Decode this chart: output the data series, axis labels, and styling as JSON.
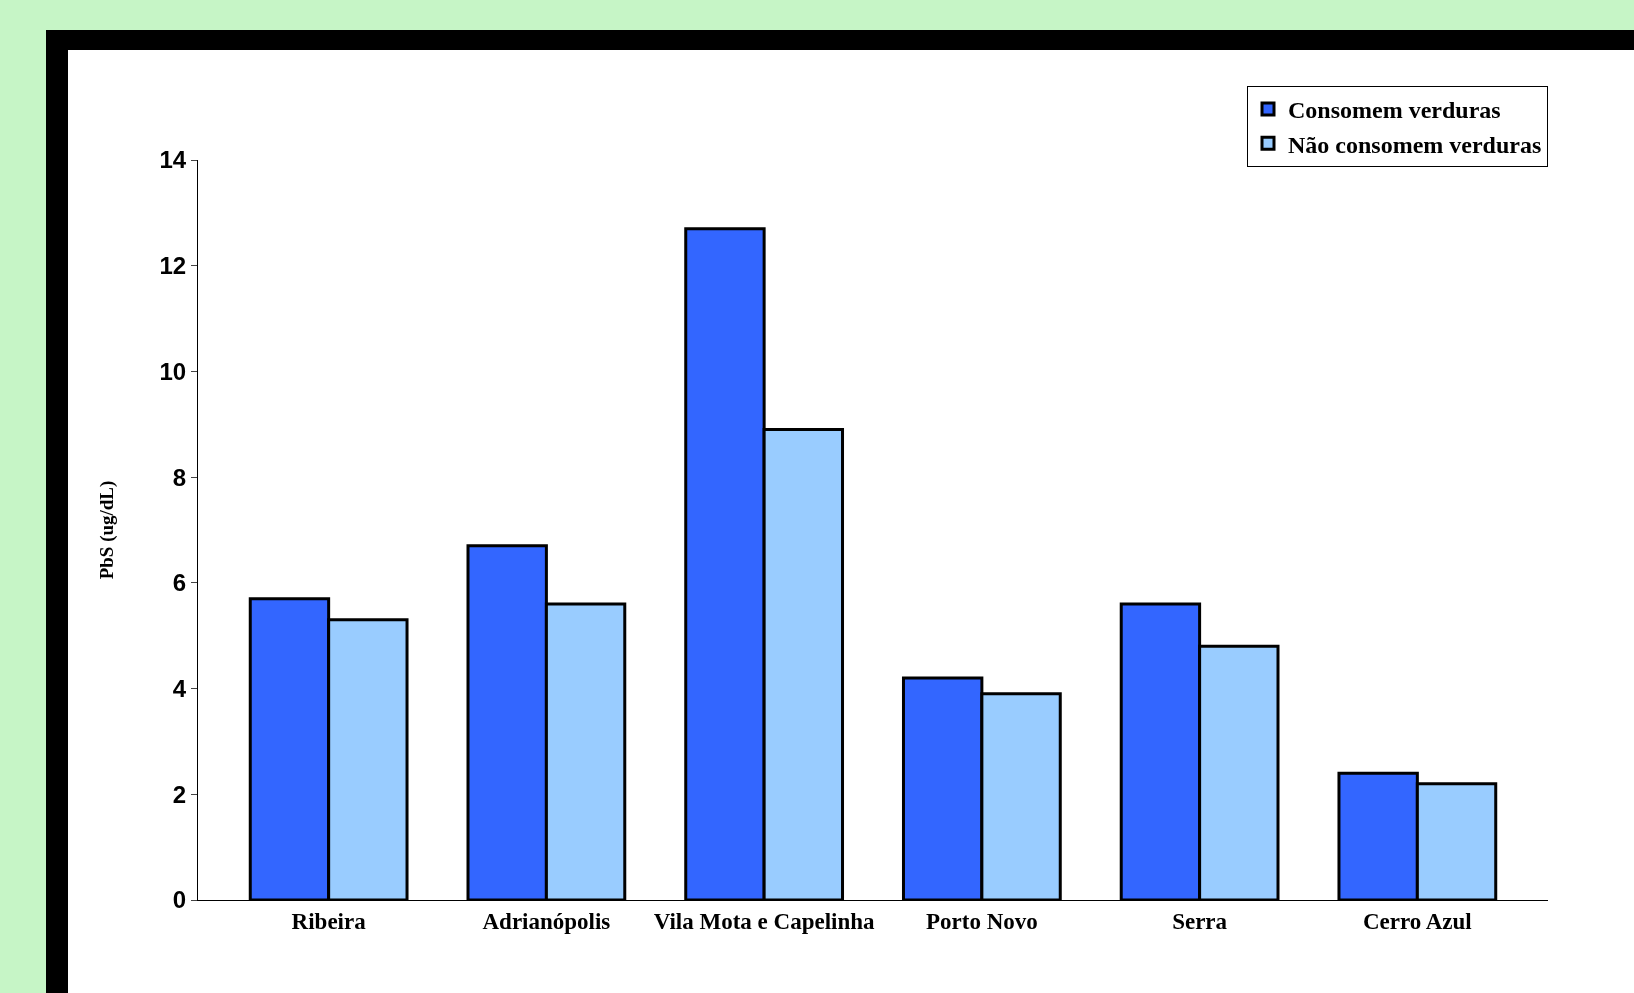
{
  "chart_data": {
    "type": "bar",
    "ylabel": "PbS (ug/dL)",
    "categories": [
      "Ribeira",
      "Adrianópolis",
      "Vila Mota e Capelinha",
      "Porto Novo",
      "Serra",
      "Cerro Azul"
    ],
    "series": [
      {
        "name": "Consomem verduras",
        "color": "#3366ff",
        "values": [
          5.7,
          6.7,
          12.7,
          4.2,
          5.6,
          2.4
        ]
      },
      {
        "name": "Não consomem verduras",
        "color": "#99ccff",
        "values": [
          5.3,
          5.6,
          8.9,
          3.9,
          4.8,
          2.2
        ]
      }
    ],
    "ylim": [
      0,
      14
    ],
    "yticks": [
      0,
      2,
      4,
      6,
      8,
      10,
      12,
      14
    ],
    "grid": false,
    "legend": "top right"
  }
}
